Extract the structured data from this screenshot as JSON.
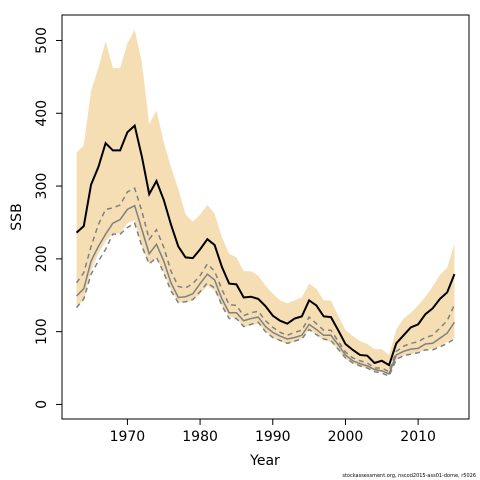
{
  "chart_data": {
    "type": "line",
    "xlabel": "Year",
    "ylabel": "SSB",
    "source": "stockassessment.org, nscod2015-ass01-dome, r5026",
    "x": [
      1963,
      1964,
      1965,
      1966,
      1967,
      1968,
      1969,
      1970,
      1971,
      1972,
      1973,
      1974,
      1975,
      1976,
      1977,
      1978,
      1979,
      1980,
      1981,
      1982,
      1983,
      1984,
      1985,
      1986,
      1987,
      1988,
      1989,
      1990,
      1991,
      1992,
      1993,
      1994,
      1995,
      1996,
      1997,
      1998,
      1999,
      2000,
      2001,
      2002,
      2003,
      2004,
      2005,
      2006,
      2007,
      2008,
      2009,
      2010,
      2011,
      2012,
      2013,
      2014,
      2015
    ],
    "xlim": [
      1961,
      2017
    ],
    "xticks": [
      1970,
      1980,
      1990,
      2000,
      2010
    ],
    "ylim": [
      -20,
      535
    ],
    "yticks": [
      0,
      100,
      200,
      300,
      400,
      500
    ],
    "band": {
      "color": "#f5deb3",
      "upper": [
        346,
        356,
        431,
        462,
        499,
        462,
        462,
        496,
        515,
        469,
        385,
        404,
        360,
        326,
        296,
        261,
        251,
        261,
        274,
        262,
        230,
        207,
        202,
        183,
        183,
        177,
        163,
        152,
        143,
        139,
        143,
        147,
        166,
        159,
        143,
        143,
        122,
        102,
        94,
        87,
        83,
        76,
        76,
        68,
        103,
        118,
        126,
        136,
        148,
        162,
        178,
        188,
        221
      ],
      "lower": [
        135,
        143,
        183,
        207,
        224,
        235,
        235,
        249,
        253,
        217,
        193,
        201,
        181,
        158,
        140,
        140,
        143,
        152,
        163,
        156,
        136,
        121,
        118,
        106,
        109,
        111,
        100,
        92,
        87,
        83,
        86,
        90,
        103,
        95,
        88,
        86,
        75,
        62,
        57,
        52,
        50,
        45,
        45,
        41,
        61,
        67,
        69,
        71,
        75,
        76,
        80,
        86,
        92
      ]
    },
    "series": [
      {
        "color": "#808080",
        "dashed": true,
        "width": 1.5,
        "values": [
          167,
          181,
          217,
          247,
          268,
          270,
          274,
          292,
          297,
          265,
          227,
          240,
          216,
          183,
          162,
          160,
          166,
          177,
          193,
          183,
          158,
          137,
          136,
          122,
          126,
          128,
          115,
          106,
          99,
          95,
          99,
          102,
          120,
          111,
          102,
          102,
          87,
          72,
          64,
          60,
          57,
          50,
          50,
          45,
          73,
          80,
          84,
          86,
          92,
          95,
          105,
          115,
          137
        ]
      },
      {
        "color": "#808080",
        "dashed": true,
        "width": 1.5,
        "values": [
          133,
          145,
          179,
          197,
          213,
          234,
          234,
          243,
          249,
          217,
          193,
          202,
          181,
          156,
          140,
          141,
          144,
          155,
          167,
          160,
          136,
          118,
          118,
          107,
          110,
          113,
          100,
          92,
          88,
          84,
          87,
          90,
          103,
          96,
          90,
          88,
          76,
          64,
          57,
          53,
          50,
          45,
          43,
          39,
          62,
          67,
          69,
          71,
          75,
          75,
          79,
          84,
          90
        ]
      },
      {
        "color": "#808080",
        "dashed": false,
        "width": 1.5,
        "values": [
          149,
          159,
          197,
          217,
          234,
          249,
          254,
          268,
          273,
          240,
          207,
          220,
          197,
          167,
          147,
          148,
          152,
          166,
          179,
          171,
          145,
          126,
          126,
          115,
          118,
          120,
          107,
          99,
          94,
          90,
          92,
          95,
          110,
          103,
          95,
          95,
          82,
          68,
          60,
          56,
          53,
          48,
          46,
          42,
          68,
          73,
          76,
          77,
          83,
          84,
          91,
          98,
          113
        ]
      },
      {
        "color": "#000000",
        "dashed": false,
        "width": 2,
        "values": [
          236,
          245,
          302,
          326,
          359,
          349,
          349,
          374,
          383,
          340,
          289,
          307,
          281,
          247,
          217,
          202,
          201,
          213,
          227,
          219,
          189,
          166,
          165,
          147,
          148,
          145,
          135,
          122,
          115,
          111,
          118,
          121,
          143,
          136,
          121,
          120,
          102,
          83,
          75,
          68,
          67,
          57,
          60,
          54,
          84,
          95,
          106,
          110,
          124,
          132,
          145,
          154,
          179
        ]
      }
    ]
  }
}
